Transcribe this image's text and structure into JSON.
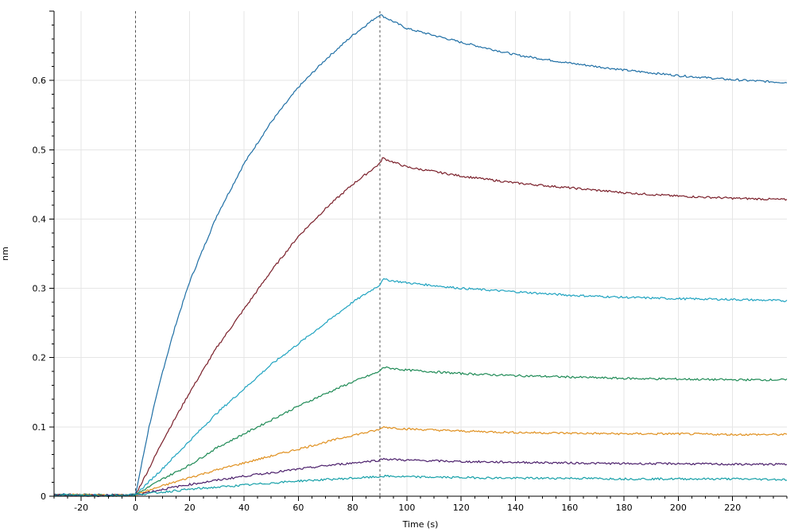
{
  "chart_data": {
    "type": "line",
    "title": "",
    "xlabel": "Time (s)",
    "ylabel": "nm",
    "xlim": [
      -30,
      240
    ],
    "ylim": [
      0,
      0.7
    ],
    "x_ticks": [
      -20,
      0,
      20,
      40,
      60,
      80,
      100,
      120,
      140,
      160,
      180,
      200,
      220
    ],
    "y_ticks": [
      0,
      0.1,
      0.2,
      0.3,
      0.4,
      0.5,
      0.6
    ],
    "y_tick_labels": [
      "0",
      "0.1",
      "0.2",
      "0.3",
      "0.4",
      "0.5",
      "0.6"
    ],
    "grid": true,
    "phase_markers": [
      0,
      90
    ],
    "series": [
      {
        "color": "#1f6fa5",
        "points": [
          [
            -30,
            0.003
          ],
          [
            -20,
            0.002
          ],
          [
            -10,
            0.002
          ],
          [
            0,
            0.002
          ],
          [
            5,
            0.1
          ],
          [
            10,
            0.18
          ],
          [
            15,
            0.25
          ],
          [
            20,
            0.31
          ],
          [
            30,
            0.405
          ],
          [
            40,
            0.48
          ],
          [
            50,
            0.54
          ],
          [
            60,
            0.59
          ],
          [
            70,
            0.63
          ],
          [
            80,
            0.665
          ],
          [
            90,
            0.695
          ],
          [
            100,
            0.675
          ],
          [
            120,
            0.655
          ],
          [
            140,
            0.637
          ],
          [
            160,
            0.625
          ],
          [
            180,
            0.615
          ],
          [
            200,
            0.607
          ],
          [
            220,
            0.601
          ],
          [
            240,
            0.597
          ]
        ]
      },
      {
        "color": "#7a1f2a",
        "points": [
          [
            -30,
            0.002
          ],
          [
            -20,
            0.002
          ],
          [
            -10,
            0.001
          ],
          [
            0,
            0.002
          ],
          [
            5,
            0.04
          ],
          [
            10,
            0.08
          ],
          [
            20,
            0.15
          ],
          [
            30,
            0.215
          ],
          [
            40,
            0.27
          ],
          [
            50,
            0.325
          ],
          [
            60,
            0.375
          ],
          [
            70,
            0.415
          ],
          [
            80,
            0.45
          ],
          [
            90,
            0.48
          ],
          [
            91,
            0.488
          ],
          [
            100,
            0.475
          ],
          [
            120,
            0.462
          ],
          [
            140,
            0.452
          ],
          [
            160,
            0.445
          ],
          [
            180,
            0.438
          ],
          [
            200,
            0.433
          ],
          [
            220,
            0.43
          ],
          [
            240,
            0.428
          ]
        ]
      },
      {
        "color": "#1fa3c0",
        "points": [
          [
            -30,
            0.002
          ],
          [
            -20,
            0.002
          ],
          [
            -10,
            0.001
          ],
          [
            0,
            0.002
          ],
          [
            10,
            0.04
          ],
          [
            20,
            0.08
          ],
          [
            30,
            0.12
          ],
          [
            40,
            0.155
          ],
          [
            50,
            0.19
          ],
          [
            60,
            0.22
          ],
          [
            70,
            0.25
          ],
          [
            80,
            0.28
          ],
          [
            90,
            0.305
          ],
          [
            91,
            0.313
          ],
          [
            100,
            0.308
          ],
          [
            120,
            0.3
          ],
          [
            140,
            0.295
          ],
          [
            160,
            0.29
          ],
          [
            180,
            0.287
          ],
          [
            200,
            0.285
          ],
          [
            220,
            0.284
          ],
          [
            240,
            0.282
          ]
        ]
      },
      {
        "color": "#1e8a55",
        "points": [
          [
            -30,
            0.002
          ],
          [
            -20,
            0.002
          ],
          [
            -10,
            0.001
          ],
          [
            0,
            0.002
          ],
          [
            10,
            0.025
          ],
          [
            20,
            0.045
          ],
          [
            30,
            0.07
          ],
          [
            40,
            0.09
          ],
          [
            50,
            0.11
          ],
          [
            60,
            0.13
          ],
          [
            70,
            0.148
          ],
          [
            80,
            0.165
          ],
          [
            90,
            0.18
          ],
          [
            91,
            0.186
          ],
          [
            100,
            0.182
          ],
          [
            120,
            0.177
          ],
          [
            140,
            0.174
          ],
          [
            160,
            0.172
          ],
          [
            180,
            0.17
          ],
          [
            200,
            0.169
          ],
          [
            220,
            0.168
          ],
          [
            240,
            0.168
          ]
        ]
      },
      {
        "color": "#e0901f",
        "points": [
          [
            -30,
            0.002
          ],
          [
            -20,
            0.002
          ],
          [
            -10,
            0.001
          ],
          [
            0,
            0.002
          ],
          [
            10,
            0.015
          ],
          [
            20,
            0.027
          ],
          [
            30,
            0.038
          ],
          [
            40,
            0.048
          ],
          [
            50,
            0.058
          ],
          [
            60,
            0.068
          ],
          [
            70,
            0.078
          ],
          [
            80,
            0.088
          ],
          [
            90,
            0.096
          ],
          [
            91,
            0.1
          ],
          [
            100,
            0.097
          ],
          [
            120,
            0.094
          ],
          [
            140,
            0.092
          ],
          [
            160,
            0.091
          ],
          [
            180,
            0.09
          ],
          [
            200,
            0.09
          ],
          [
            220,
            0.089
          ],
          [
            240,
            0.089
          ]
        ]
      },
      {
        "color": "#4b1f6b",
        "points": [
          [
            -30,
            0.002
          ],
          [
            -20,
            0.001
          ],
          [
            -10,
            0.001
          ],
          [
            0,
            0.002
          ],
          [
            10,
            0.01
          ],
          [
            20,
            0.017
          ],
          [
            30,
            0.023
          ],
          [
            40,
            0.029
          ],
          [
            50,
            0.034
          ],
          [
            60,
            0.039
          ],
          [
            70,
            0.044
          ],
          [
            80,
            0.048
          ],
          [
            90,
            0.052
          ],
          [
            91,
            0.054
          ],
          [
            100,
            0.052
          ],
          [
            120,
            0.05
          ],
          [
            140,
            0.049
          ],
          [
            160,
            0.048
          ],
          [
            180,
            0.047
          ],
          [
            200,
            0.047
          ],
          [
            220,
            0.046
          ],
          [
            240,
            0.046
          ]
        ]
      },
      {
        "color": "#16a0a8",
        "points": [
          [
            -30,
            0.002
          ],
          [
            -20,
            0.001
          ],
          [
            -10,
            0.001
          ],
          [
            0,
            0.002
          ],
          [
            10,
            0.006
          ],
          [
            20,
            0.01
          ],
          [
            30,
            0.013
          ],
          [
            40,
            0.016
          ],
          [
            50,
            0.019
          ],
          [
            60,
            0.022
          ],
          [
            70,
            0.024
          ],
          [
            80,
            0.026
          ],
          [
            90,
            0.028
          ],
          [
            91,
            0.029
          ],
          [
            100,
            0.028
          ],
          [
            120,
            0.027
          ],
          [
            140,
            0.026
          ],
          [
            160,
            0.026
          ],
          [
            180,
            0.025
          ],
          [
            200,
            0.025
          ],
          [
            220,
            0.025
          ],
          [
            240,
            0.024
          ]
        ]
      }
    ]
  }
}
